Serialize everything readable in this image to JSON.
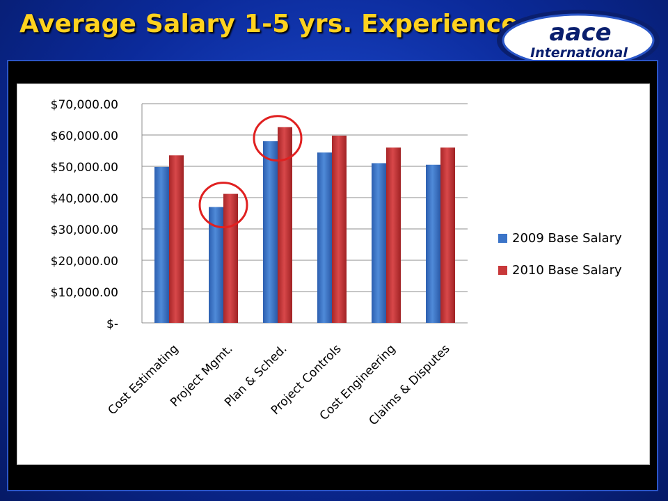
{
  "slide": {
    "title": "Average Salary 1-5 yrs. Experience",
    "logo_word": "aace",
    "logo_sub": "International"
  },
  "colors": {
    "title": "#FFD21F",
    "background": "#0B2A9A",
    "series_2009": "#3B74C8",
    "series_2010": "#C8383A",
    "highlight_circle": "#E02020"
  },
  "chart_data": {
    "type": "bar",
    "categories": [
      "Cost Estimating",
      "Project Mgmt.",
      "Plan & Sched.",
      "Project Controls",
      "Cost Engineering",
      "Claims & Disputes"
    ],
    "series": [
      {
        "name": "2009 Base Salary",
        "values": [
          49800,
          37000,
          58000,
          54400,
          51000,
          50500
        ]
      },
      {
        "name": "2010 Base Salary",
        "values": [
          53500,
          41200,
          62500,
          59800,
          56000,
          56000
        ]
      }
    ],
    "ylim": [
      0,
      70000
    ],
    "y_ticks": [
      {
        "value": 0,
        "label": "$-"
      },
      {
        "value": 10000,
        "label": "$10,000.00"
      },
      {
        "value": 20000,
        "label": "$20,000.00"
      },
      {
        "value": 30000,
        "label": "$30,000.00"
      },
      {
        "value": 40000,
        "label": "$40,000.00"
      },
      {
        "value": 50000,
        "label": "$50,000.00"
      },
      {
        "value": 60000,
        "label": "$60,000.00"
      },
      {
        "value": 70000,
        "label": "$70,000.00"
      }
    ],
    "grid": true,
    "legend_position": "right",
    "highlighted_categories": [
      "Project Mgmt.",
      "Plan & Sched."
    ]
  }
}
